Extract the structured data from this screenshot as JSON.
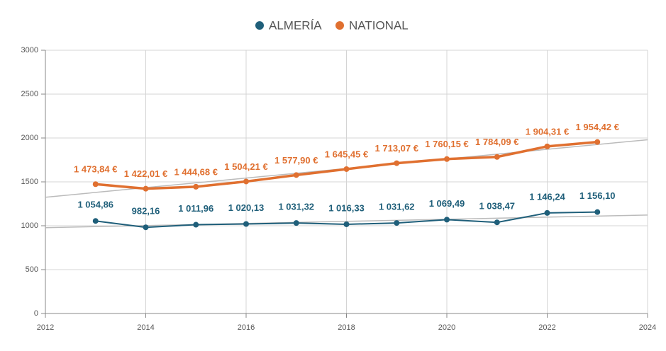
{
  "chart_data": {
    "type": "line",
    "x": [
      2013,
      2014,
      2015,
      2016,
      2017,
      2018,
      2019,
      2020,
      2021,
      2022,
      2023
    ],
    "series": [
      {
        "name": "ALMERÍA",
        "color": "#1f5f7a",
        "values": [
          1054.86,
          982.16,
          1011.96,
          1020.13,
          1031.32,
          1016.33,
          1031.62,
          1069.49,
          1038.47,
          1146.24,
          1156.1
        ],
        "value_labels": [
          "1 054,86",
          "982,16",
          "1 011,96",
          "1 020,13",
          "1 031,32",
          "1 016,33",
          "1 031,62",
          "1 069,49",
          "1 038,47",
          "1 146,24",
          "1 156,10"
        ],
        "trend": [
          978,
          1122
        ]
      },
      {
        "name": "NATIONAL",
        "color": "#e07030",
        "values": [
          1473.84,
          1422.01,
          1444.68,
          1504.21,
          1577.9,
          1645.45,
          1713.07,
          1760.15,
          1784.09,
          1904.31,
          1954.42
        ],
        "value_labels": [
          "1 473,84 €",
          "1 422,01 €",
          "1 444,68 €",
          "1 504,21 €",
          "1 577,90 €",
          "1 645,45 €",
          "1 713,07 €",
          "1 760,15 €",
          "1 784,09 €",
          "1 904,31 €",
          "1 954,42 €"
        ],
        "trend": [
          1325,
          1980
        ]
      }
    ],
    "xlim": [
      2012,
      2024
    ],
    "xticks": [
      2012,
      2014,
      2016,
      2018,
      2020,
      2022,
      2024
    ],
    "ylim": [
      0,
      3000
    ],
    "yticks": [
      0,
      500,
      1000,
      1500,
      2000,
      2500,
      3000
    ],
    "grid": true
  }
}
